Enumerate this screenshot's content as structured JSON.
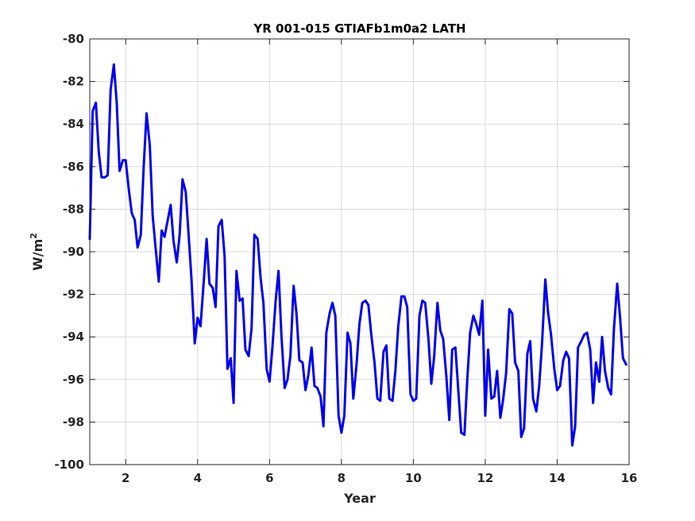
{
  "chart_data": {
    "type": "line",
    "title": "YR 001-015 GTIAFb1m0a2 LATH",
    "xlabel": "Year",
    "ylabel_base": "W/m",
    "ylabel_sup": "2",
    "xlim": [
      1,
      16
    ],
    "ylim": [
      -100,
      -80
    ],
    "x_ticks": [
      2,
      4,
      6,
      8,
      10,
      12,
      14,
      16
    ],
    "y_ticks": [
      -80,
      -82,
      -84,
      -86,
      -88,
      -90,
      -92,
      -94,
      -96,
      -98,
      -100
    ],
    "grid": true,
    "series": [
      {
        "color": "#0000ee",
        "x": [
          1.0,
          1.08,
          1.17,
          1.25,
          1.33,
          1.42,
          1.5,
          1.58,
          1.67,
          1.75,
          1.83,
          1.92,
          2.0,
          2.08,
          2.17,
          2.25,
          2.33,
          2.42,
          2.5,
          2.58,
          2.67,
          2.75,
          2.83,
          2.92,
          3.0,
          3.08,
          3.17,
          3.25,
          3.33,
          3.42,
          3.5,
          3.58,
          3.67,
          3.75,
          3.83,
          3.92,
          4.0,
          4.08,
          4.17,
          4.25,
          4.33,
          4.42,
          4.5,
          4.58,
          4.67,
          4.75,
          4.83,
          4.92,
          5.0,
          5.08,
          5.17,
          5.25,
          5.33,
          5.42,
          5.5,
          5.58,
          5.67,
          5.75,
          5.83,
          5.92,
          6.0,
          6.08,
          6.17,
          6.25,
          6.33,
          6.42,
          6.5,
          6.58,
          6.67,
          6.75,
          6.83,
          6.92,
          7.0,
          7.08,
          7.17,
          7.25,
          7.33,
          7.42,
          7.5,
          7.58,
          7.67,
          7.75,
          7.83,
          7.92,
          8.0,
          8.08,
          8.17,
          8.25,
          8.33,
          8.42,
          8.5,
          8.58,
          8.67,
          8.75,
          8.83,
          8.92,
          9.0,
          9.08,
          9.17,
          9.25,
          9.33,
          9.42,
          9.5,
          9.58,
          9.67,
          9.75,
          9.83,
          9.92,
          10.0,
          10.08,
          10.17,
          10.25,
          10.33,
          10.42,
          10.5,
          10.58,
          10.67,
          10.75,
          10.83,
          10.92,
          11.0,
          11.08,
          11.17,
          11.25,
          11.33,
          11.42,
          11.5,
          11.58,
          11.67,
          11.75,
          11.83,
          11.92,
          12.0,
          12.08,
          12.17,
          12.25,
          12.33,
          12.42,
          12.5,
          12.58,
          12.67,
          12.75,
          12.83,
          12.92,
          13.0,
          13.08,
          13.17,
          13.25,
          13.33,
          13.42,
          13.5,
          13.58,
          13.67,
          13.75,
          13.83,
          13.92,
          14.0,
          14.08,
          14.17,
          14.25,
          14.33,
          14.42,
          14.5,
          14.58,
          14.67,
          14.75,
          14.83,
          14.92,
          15.0,
          15.08,
          15.17,
          15.25,
          15.33,
          15.42,
          15.5,
          15.58,
          15.67,
          15.75,
          15.83,
          15.92
        ],
        "y": [
          -89.4,
          -83.4,
          -83.0,
          -85.3,
          -86.5,
          -86.5,
          -86.4,
          -82.4,
          -81.2,
          -83.0,
          -86.2,
          -85.7,
          -85.7,
          -87.0,
          -88.2,
          -88.5,
          -89.8,
          -89.2,
          -86.0,
          -83.5,
          -85.0,
          -88.3,
          -89.8,
          -91.4,
          -89.0,
          -89.3,
          -88.5,
          -87.8,
          -89.5,
          -90.5,
          -89.2,
          -86.6,
          -87.2,
          -89.2,
          -91.3,
          -94.3,
          -93.1,
          -93.5,
          -91.4,
          -89.4,
          -91.5,
          -91.7,
          -92.6,
          -88.8,
          -88.5,
          -90.2,
          -95.5,
          -95.0,
          -97.1,
          -90.9,
          -92.3,
          -92.2,
          -94.6,
          -94.9,
          -93.6,
          -89.2,
          -89.4,
          -91.2,
          -92.4,
          -95.5,
          -96.1,
          -94.5,
          -92.3,
          -90.9,
          -93.9,
          -96.4,
          -96.0,
          -94.9,
          -91.6,
          -92.9,
          -95.1,
          -95.2,
          -96.5,
          -95.8,
          -94.5,
          -96.3,
          -96.4,
          -96.8,
          -98.2,
          -93.8,
          -92.9,
          -92.4,
          -93.0,
          -97.7,
          -98.5,
          -97.7,
          -93.8,
          -94.3,
          -96.9,
          -95.3,
          -93.4,
          -92.4,
          -92.3,
          -92.5,
          -93.9,
          -95.2,
          -96.9,
          -97.0,
          -94.7,
          -94.4,
          -96.9,
          -97.0,
          -95.6,
          -93.5,
          -92.1,
          -92.1,
          -92.6,
          -96.7,
          -97.0,
          -96.9,
          -93.0,
          -92.3,
          -92.4,
          -94.1,
          -96.2,
          -94.9,
          -92.4,
          -93.7,
          -94.1,
          -95.9,
          -97.9,
          -94.6,
          -94.5,
          -96.5,
          -98.5,
          -98.6,
          -96.0,
          -93.8,
          -93.0,
          -93.4,
          -93.9,
          -92.3,
          -97.7,
          -94.6,
          -96.9,
          -96.8,
          -95.6,
          -97.8,
          -96.9,
          -95.7,
          -92.7,
          -92.9,
          -95.2,
          -95.6,
          -98.7,
          -98.3,
          -94.8,
          -94.2,
          -96.9,
          -97.5,
          -96.3,
          -94.3,
          -91.3,
          -92.9,
          -93.9,
          -95.5,
          -96.5,
          -96.3,
          -95.1,
          -94.7,
          -95.0,
          -99.1,
          -98.2,
          -94.5,
          -94.2,
          -93.9,
          -93.8,
          -94.6,
          -97.1,
          -95.2,
          -96.1,
          -94.0,
          -95.6,
          -96.4,
          -96.7,
          -93.6,
          -91.5,
          -93.1,
          -95.0,
          -95.3
        ]
      }
    ]
  }
}
